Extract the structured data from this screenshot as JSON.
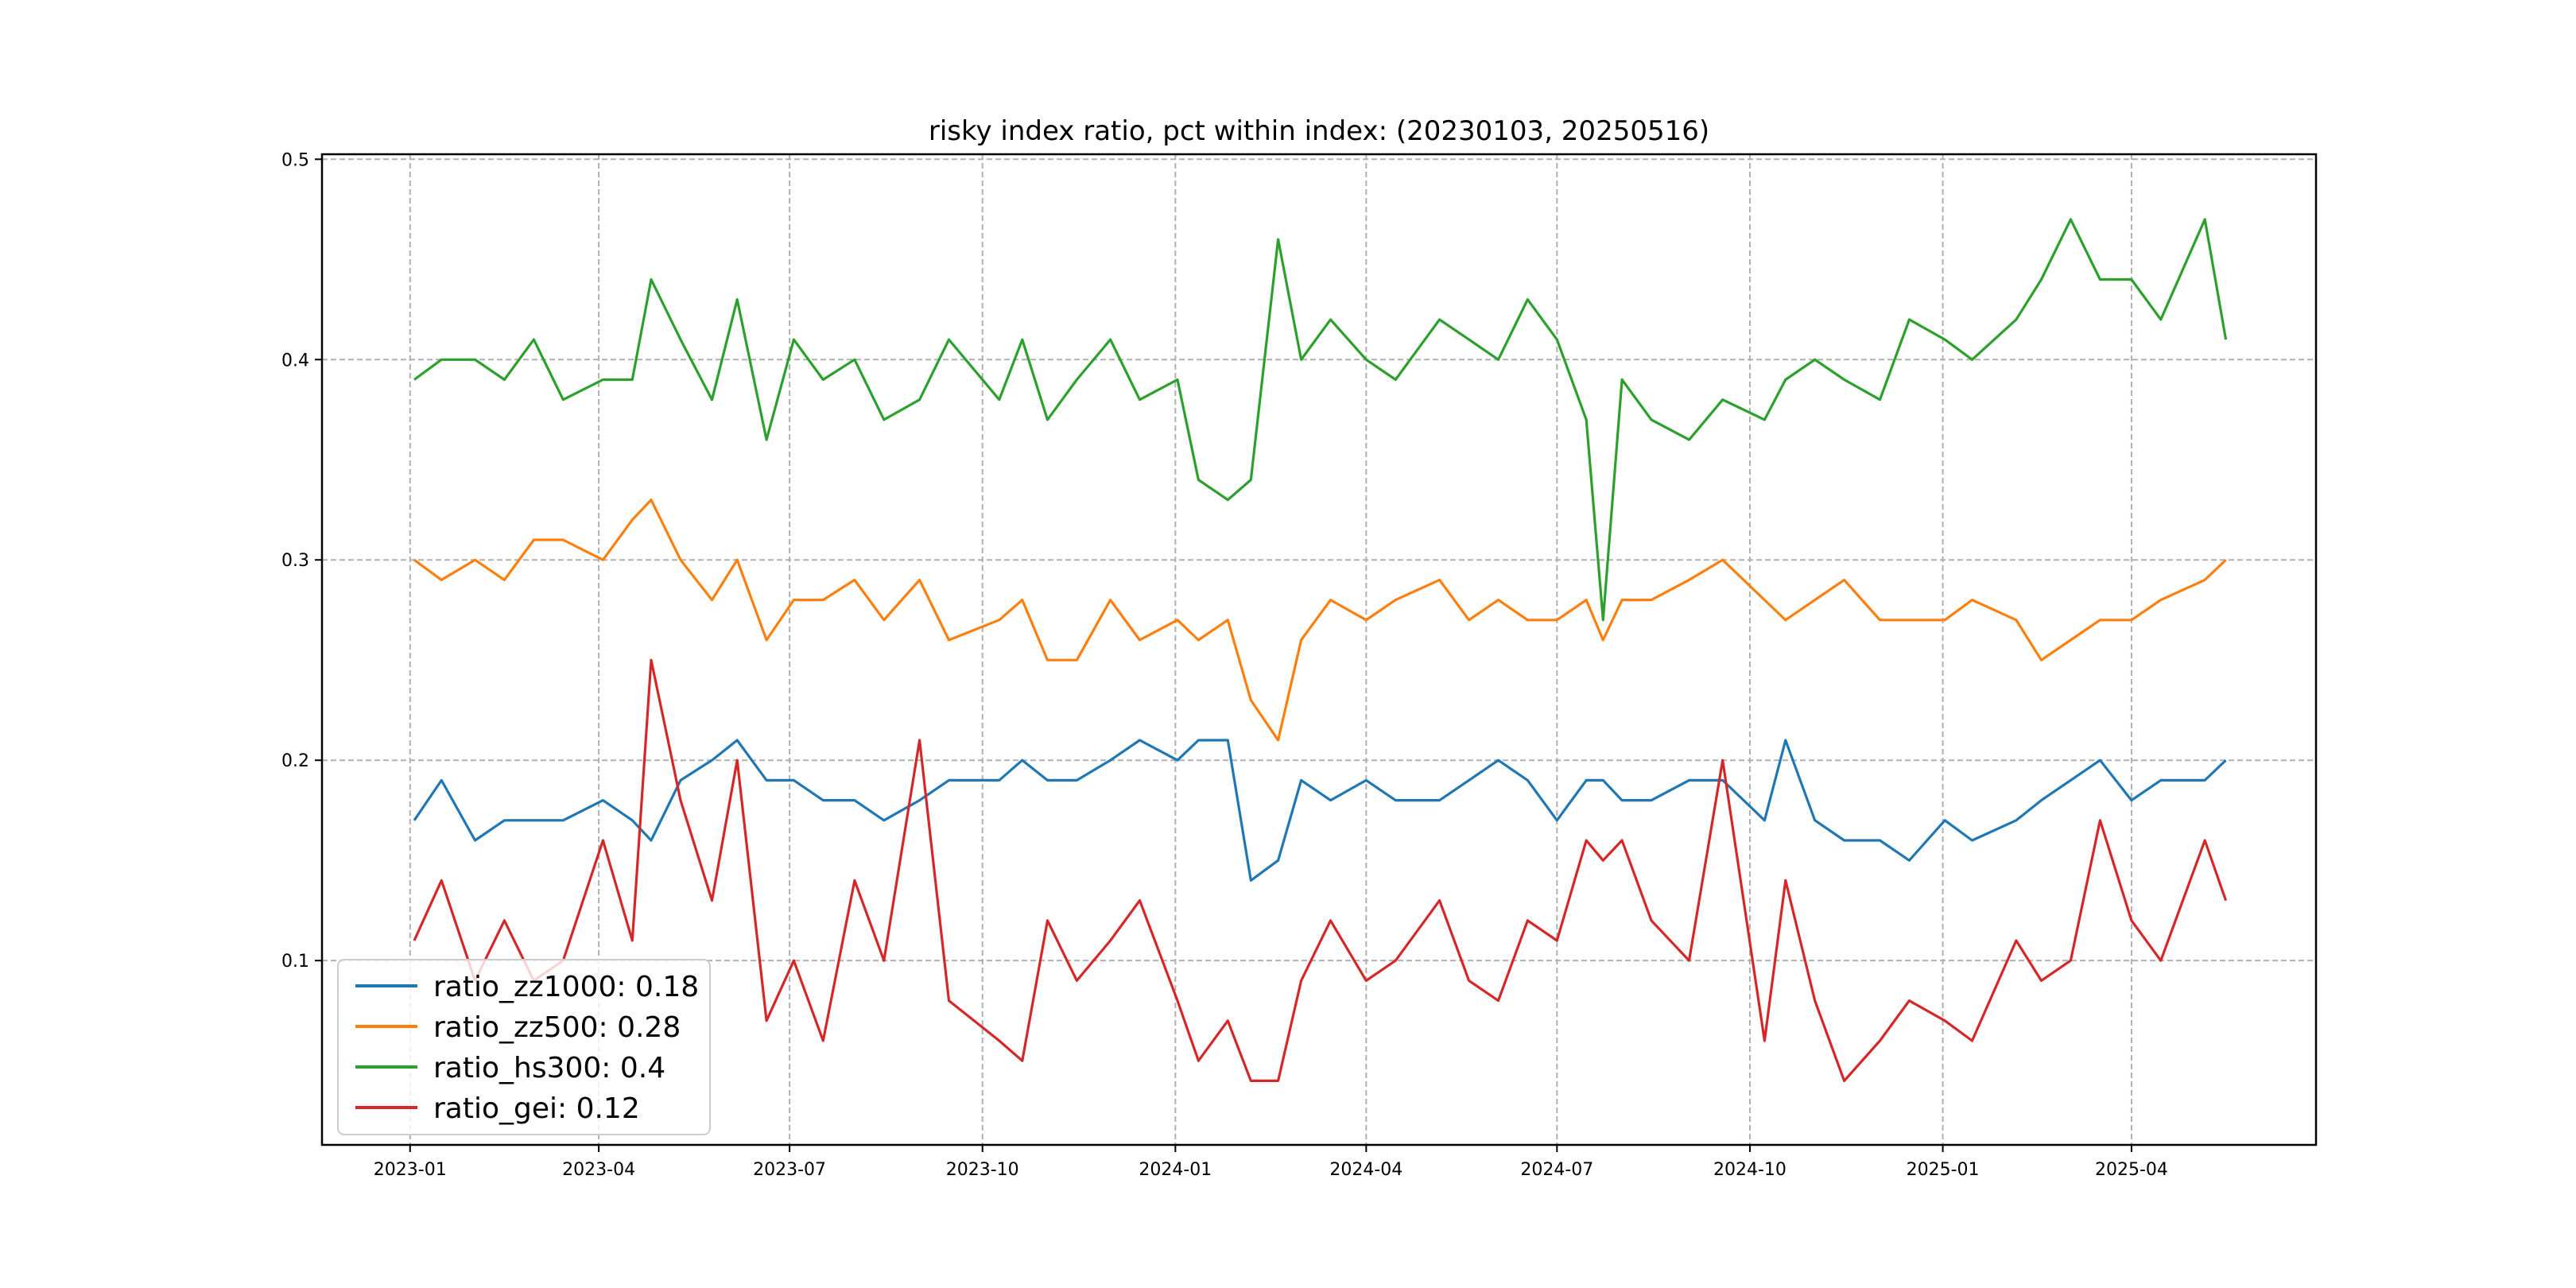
{
  "chart_data": {
    "type": "line",
    "title": "risky index ratio, pct within index: (20230103, 20250516)",
    "xlabel": "",
    "ylabel": "",
    "xlim": [
      "2022-11-20",
      "2025-06-28"
    ],
    "ylim": [
      0.008,
      0.5025
    ],
    "grid": true,
    "legend_position": "lower-left",
    "xticks": [
      "2023-01",
      "2023-04",
      "2023-07",
      "2023-10",
      "2024-01",
      "2024-04",
      "2024-07",
      "2024-10",
      "2025-01",
      "2025-04"
    ],
    "yticks": [
      0.1,
      0.2,
      0.3,
      0.4,
      0.5
    ],
    "ytick_labels": [
      "0.1",
      "0.2",
      "0.3",
      "0.4",
      "0.5"
    ],
    "x": [
      "2023-01-03",
      "2023-01-16",
      "2023-02-01",
      "2023-02-15",
      "2023-03-01",
      "2023-03-15",
      "2023-04-03",
      "2023-04-17",
      "2023-04-26",
      "2023-05-10",
      "2023-05-25",
      "2023-06-06",
      "2023-06-20",
      "2023-07-03",
      "2023-07-17",
      "2023-08-01",
      "2023-08-15",
      "2023-09-01",
      "2023-09-15",
      "2023-10-09",
      "2023-10-20",
      "2023-11-01",
      "2023-11-15",
      "2023-12-01",
      "2023-12-15",
      "2024-01-02",
      "2024-01-12",
      "2024-01-26",
      "2024-02-06",
      "2024-02-19",
      "2024-03-01",
      "2024-03-15",
      "2024-04-01",
      "2024-04-15",
      "2024-05-06",
      "2024-05-20",
      "2024-06-03",
      "2024-06-17",
      "2024-07-01",
      "2024-07-15",
      "2024-07-23",
      "2024-08-01",
      "2024-08-15",
      "2024-09-02",
      "2024-09-18",
      "2024-10-08",
      "2024-10-18",
      "2024-11-01",
      "2024-11-15",
      "2024-12-02",
      "2024-12-16",
      "2025-01-02",
      "2025-01-15",
      "2025-02-05",
      "2025-02-17",
      "2025-03-03",
      "2025-03-17",
      "2025-04-01",
      "2025-04-15",
      "2025-05-06",
      "2025-05-16"
    ],
    "series": [
      {
        "name": "ratio_zz1000",
        "legend_label": "ratio_zz1000: 0.18",
        "color": "#1f77b4",
        "values": [
          0.17,
          0.19,
          0.16,
          0.17,
          0.17,
          0.17,
          0.18,
          0.17,
          0.16,
          0.19,
          0.2,
          0.21,
          0.19,
          0.19,
          0.18,
          0.18,
          0.17,
          0.18,
          0.19,
          0.19,
          0.2,
          0.19,
          0.19,
          0.2,
          0.21,
          0.2,
          0.21,
          0.21,
          0.14,
          0.15,
          0.19,
          0.18,
          0.19,
          0.18,
          0.18,
          0.19,
          0.2,
          0.19,
          0.17,
          0.19,
          0.19,
          0.18,
          0.18,
          0.19,
          0.19,
          0.17,
          0.21,
          0.17,
          0.16,
          0.16,
          0.15,
          0.17,
          0.16,
          0.17,
          0.18,
          0.19,
          0.2,
          0.18,
          0.19,
          0.19,
          0.2
        ]
      },
      {
        "name": "ratio_zz500",
        "legend_label": "ratio_zz500: 0.28",
        "color": "#ff7f0e",
        "values": [
          0.3,
          0.29,
          0.3,
          0.29,
          0.31,
          0.31,
          0.3,
          0.32,
          0.33,
          0.3,
          0.28,
          0.3,
          0.26,
          0.28,
          0.28,
          0.29,
          0.27,
          0.29,
          0.26,
          0.27,
          0.28,
          0.25,
          0.25,
          0.28,
          0.26,
          0.27,
          0.26,
          0.27,
          0.23,
          0.21,
          0.26,
          0.28,
          0.27,
          0.28,
          0.29,
          0.27,
          0.28,
          0.27,
          0.27,
          0.28,
          0.26,
          0.28,
          0.28,
          0.29,
          0.3,
          0.28,
          0.27,
          0.28,
          0.29,
          0.27,
          0.27,
          0.27,
          0.28,
          0.27,
          0.25,
          0.26,
          0.27,
          0.27,
          0.28,
          0.29,
          0.3
        ]
      },
      {
        "name": "ratio_hs300",
        "legend_label": "ratio_hs300: 0.4",
        "color": "#2ca02c",
        "values": [
          0.39,
          0.4,
          0.4,
          0.39,
          0.41,
          0.38,
          0.39,
          0.39,
          0.44,
          0.41,
          0.38,
          0.43,
          0.36,
          0.41,
          0.39,
          0.4,
          0.37,
          0.38,
          0.41,
          0.38,
          0.41,
          0.37,
          0.39,
          0.41,
          0.38,
          0.39,
          0.34,
          0.33,
          0.34,
          0.46,
          0.4,
          0.42,
          0.4,
          0.39,
          0.42,
          0.41,
          0.4,
          0.43,
          0.41,
          0.37,
          0.27,
          0.39,
          0.37,
          0.36,
          0.38,
          0.37,
          0.39,
          0.4,
          0.39,
          0.38,
          0.42,
          0.41,
          0.4,
          0.42,
          0.44,
          0.47,
          0.44,
          0.44,
          0.42,
          0.47,
          0.41
        ]
      },
      {
        "name": "ratio_gei",
        "legend_label": "ratio_gei: 0.12",
        "color": "#d62728",
        "values": [
          0.11,
          0.14,
          0.09,
          0.12,
          0.09,
          0.1,
          0.16,
          0.11,
          0.25,
          0.18,
          0.13,
          0.2,
          0.07,
          0.1,
          0.06,
          0.14,
          0.1,
          0.21,
          0.08,
          0.06,
          0.05,
          0.12,
          0.09,
          0.11,
          0.13,
          0.08,
          0.05,
          0.07,
          0.04,
          0.04,
          0.09,
          0.12,
          0.09,
          0.1,
          0.13,
          0.09,
          0.08,
          0.12,
          0.11,
          0.16,
          0.15,
          0.16,
          0.12,
          0.1,
          0.2,
          0.06,
          0.14,
          0.08,
          0.04,
          0.06,
          0.08,
          0.07,
          0.06,
          0.11,
          0.09,
          0.1,
          0.17,
          0.12,
          0.1,
          0.16,
          0.13
        ]
      }
    ]
  }
}
